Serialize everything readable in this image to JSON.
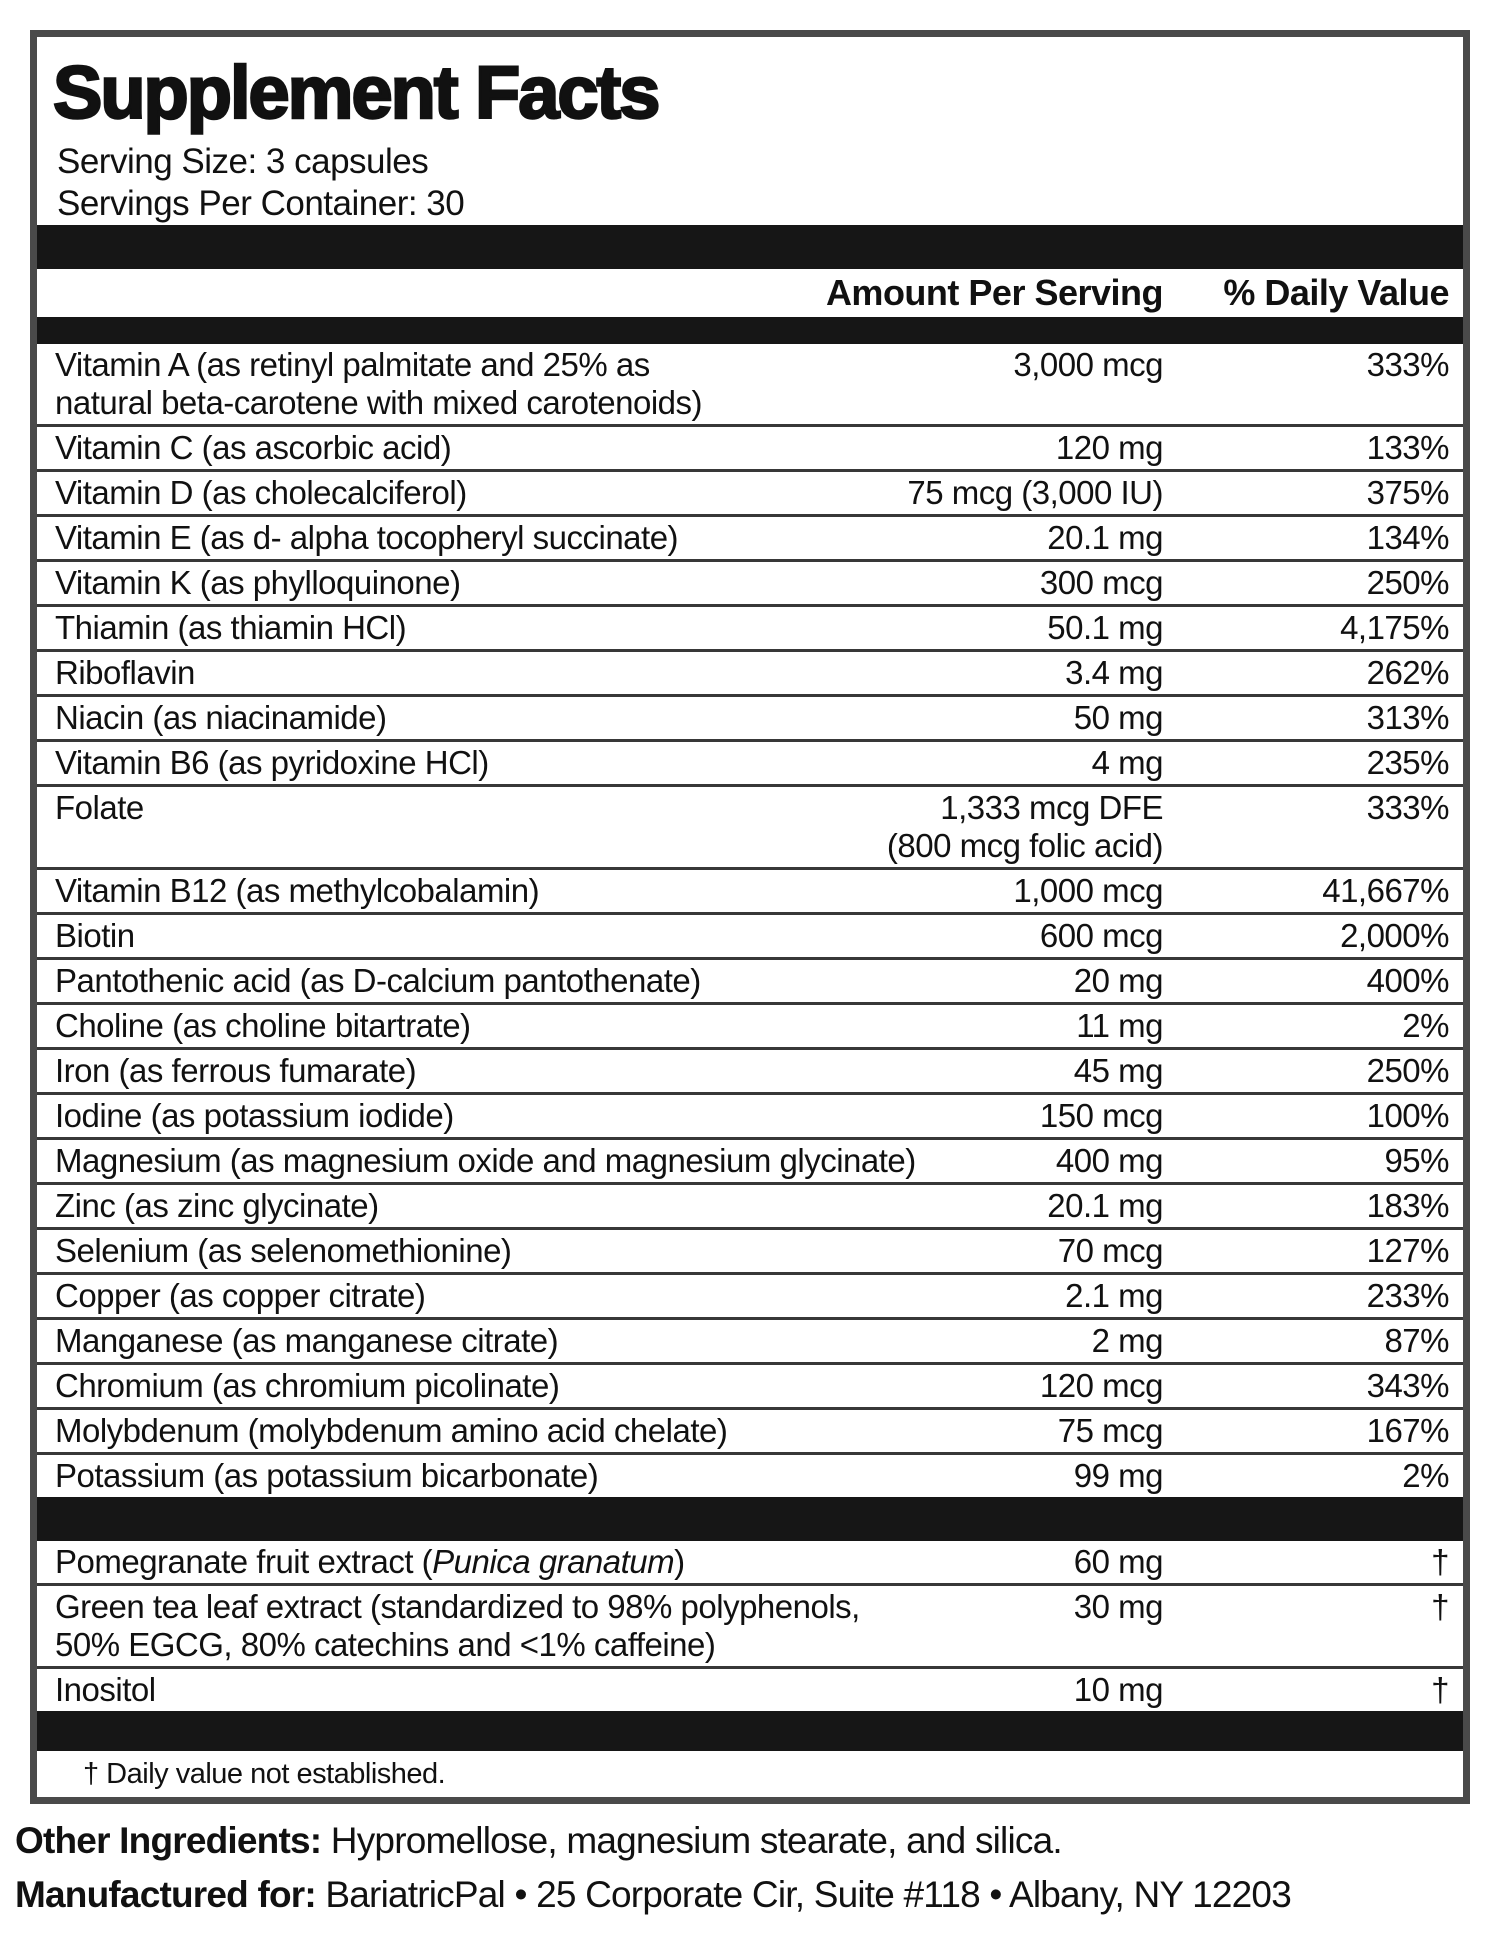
{
  "label": {
    "title": "Supplement Facts",
    "serving_size": "Serving Size: 3 capsules",
    "servings_per_container": "Servings Per Container: 30",
    "header": {
      "amount": "Amount Per Serving",
      "daily_value": "% Daily Value"
    },
    "nutrients": [
      {
        "name": "Vitamin A (as retinyl palmitate and 25% as",
        "name2": "natural beta-carotene with mixed carotenoids)",
        "amount": "3,000 mcg",
        "dv": "333%"
      },
      {
        "name": "Vitamin C (as ascorbic acid)",
        "amount": "120 mg",
        "dv": "133%"
      },
      {
        "name": "Vitamin D (as cholecalciferol)",
        "amount": "75 mcg (3,000 IU)",
        "dv": "375%"
      },
      {
        "name": "Vitamin E (as d- alpha tocopheryl succinate)",
        "amount": "20.1 mg",
        "dv": "134%"
      },
      {
        "name": "Vitamin K (as phylloquinone)",
        "amount": "300 mcg",
        "dv": "250%"
      },
      {
        "name": "Thiamin (as thiamin HCl)",
        "amount": "50.1 mg",
        "dv": "4,175%"
      },
      {
        "name": "Riboflavin",
        "amount": "3.4 mg",
        "dv": "262%"
      },
      {
        "name": "Niacin (as niacinamide)",
        "amount": "50 mg",
        "dv": "313%"
      },
      {
        "name": "Vitamin B6 (as pyridoxine HCl)",
        "amount": "4 mg",
        "dv": "235%"
      },
      {
        "name": "Folate",
        "amount": "1,333 mcg DFE",
        "amount2": "(800 mcg folic acid)",
        "dv": "333%"
      },
      {
        "name": "Vitamin B12 (as methylcobalamin)",
        "amount": "1,000 mcg",
        "dv": "41,667%"
      },
      {
        "name": "Biotin",
        "amount": "600 mcg",
        "dv": "2,000%"
      },
      {
        "name": "Pantothenic acid (as D-calcium pantothenate)",
        "amount": "20 mg",
        "dv": "400%"
      },
      {
        "name": "Choline (as choline bitartrate)",
        "amount": "11 mg",
        "dv": "2%"
      },
      {
        "name": "Iron (as ferrous fumarate)",
        "amount": "45 mg",
        "dv": "250%"
      },
      {
        "name": "Iodine (as potassium iodide)",
        "amount": "150 mcg",
        "dv": "100%"
      },
      {
        "name": "Magnesium (as magnesium oxide and magnesium glycinate)",
        "amount": "400 mg",
        "dv": "95%"
      },
      {
        "name": "Zinc (as zinc glycinate)",
        "amount": "20.1 mg",
        "dv": "183%"
      },
      {
        "name": "Selenium (as selenomethionine)",
        "amount": "70 mcg",
        "dv": "127%"
      },
      {
        "name": "Copper (as copper citrate)",
        "amount": "2.1 mg",
        "dv": "233%"
      },
      {
        "name": "Manganese (as manganese citrate)",
        "amount": "2 mg",
        "dv": "87%"
      },
      {
        "name": "Chromium (as chromium picolinate)",
        "amount": "120 mcg",
        "dv": "343%"
      },
      {
        "name": "Molybdenum (molybdenum amino acid chelate)",
        "amount": "75 mcg",
        "dv": "167%"
      },
      {
        "name": "Potassium (as potassium bicarbonate)",
        "amount": "99 mg",
        "dv": "2%"
      }
    ],
    "botanicals": [
      {
        "name_pre": "Pomegranate fruit extract (",
        "name_italic": "Punica granatum",
        "name_post": ")",
        "amount": "60 mg",
        "dv": "†"
      },
      {
        "name": "Green tea leaf extract (standardized to 98% polyphenols,",
        "name2": "50% EGCG, 80% catechins and <1% caffeine)",
        "amount": "30 mg",
        "dv": "†"
      },
      {
        "name": "Inositol",
        "amount": "10 mg",
        "dv": "†"
      }
    ],
    "footnote": "† Daily value not established."
  },
  "footer": {
    "other_ingredients_label": "Other Ingredients:",
    "other_ingredients_text": " Hypromellose, magnesium stearate, and silica.",
    "manufactured_label": "Manufactured for:",
    "manufactured_text": " BariatricPal • 25 Corporate Cir, Suite #118 • Albany, NY 12203"
  }
}
